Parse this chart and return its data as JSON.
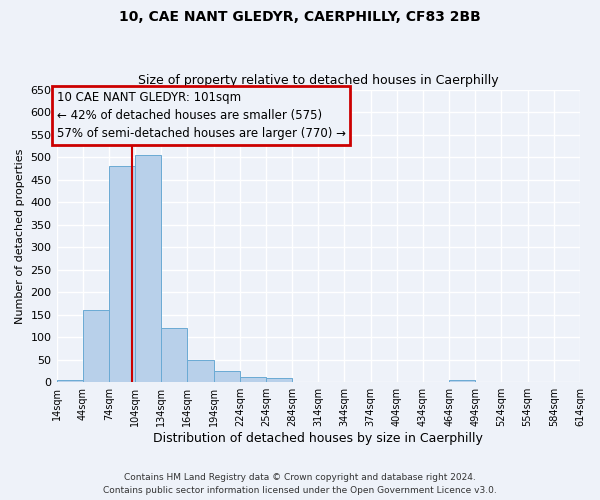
{
  "title": "10, CAE NANT GLEDYR, CAERPHILLY, CF83 2BB",
  "subtitle": "Size of property relative to detached houses in Caerphilly",
  "xlabel": "Distribution of detached houses by size in Caerphilly",
  "ylabel": "Number of detached properties",
  "bar_values": [
    5,
    160,
    480,
    505,
    120,
    50,
    25,
    12,
    10,
    0,
    0,
    0,
    0,
    0,
    0,
    5,
    0,
    0,
    0,
    0
  ],
  "bin_starts": [
    14,
    44,
    74,
    104,
    134,
    164,
    194,
    224,
    254,
    284,
    314,
    344,
    374,
    404,
    434,
    464,
    494,
    524,
    554,
    584
  ],
  "bin_width": 30,
  "tick_labels": [
    "14sqm",
    "44sqm",
    "74sqm",
    "104sqm",
    "134sqm",
    "164sqm",
    "194sqm",
    "224sqm",
    "254sqm",
    "284sqm",
    "314sqm",
    "344sqm",
    "374sqm",
    "404sqm",
    "434sqm",
    "464sqm",
    "494sqm",
    "524sqm",
    "554sqm",
    "584sqm",
    "614sqm"
  ],
  "bar_color": "#b8d0ea",
  "bar_edgecolor": "#6aaad4",
  "vline_x": 101,
  "vline_color": "#cc0000",
  "ylim": [
    0,
    650
  ],
  "yticks": [
    0,
    50,
    100,
    150,
    200,
    250,
    300,
    350,
    400,
    450,
    500,
    550,
    600,
    650
  ],
  "annotation_title": "10 CAE NANT GLEDYR: 101sqm",
  "annotation_line1": "← 42% of detached houses are smaller (575)",
  "annotation_line2": "57% of semi-detached houses are larger (770) →",
  "annotation_box_edgecolor": "#cc0000",
  "footer_line1": "Contains HM Land Registry data © Crown copyright and database right 2024.",
  "footer_line2": "Contains public sector information licensed under the Open Government Licence v3.0.",
  "background_color": "#eef2f9",
  "grid_color": "#ffffff"
}
